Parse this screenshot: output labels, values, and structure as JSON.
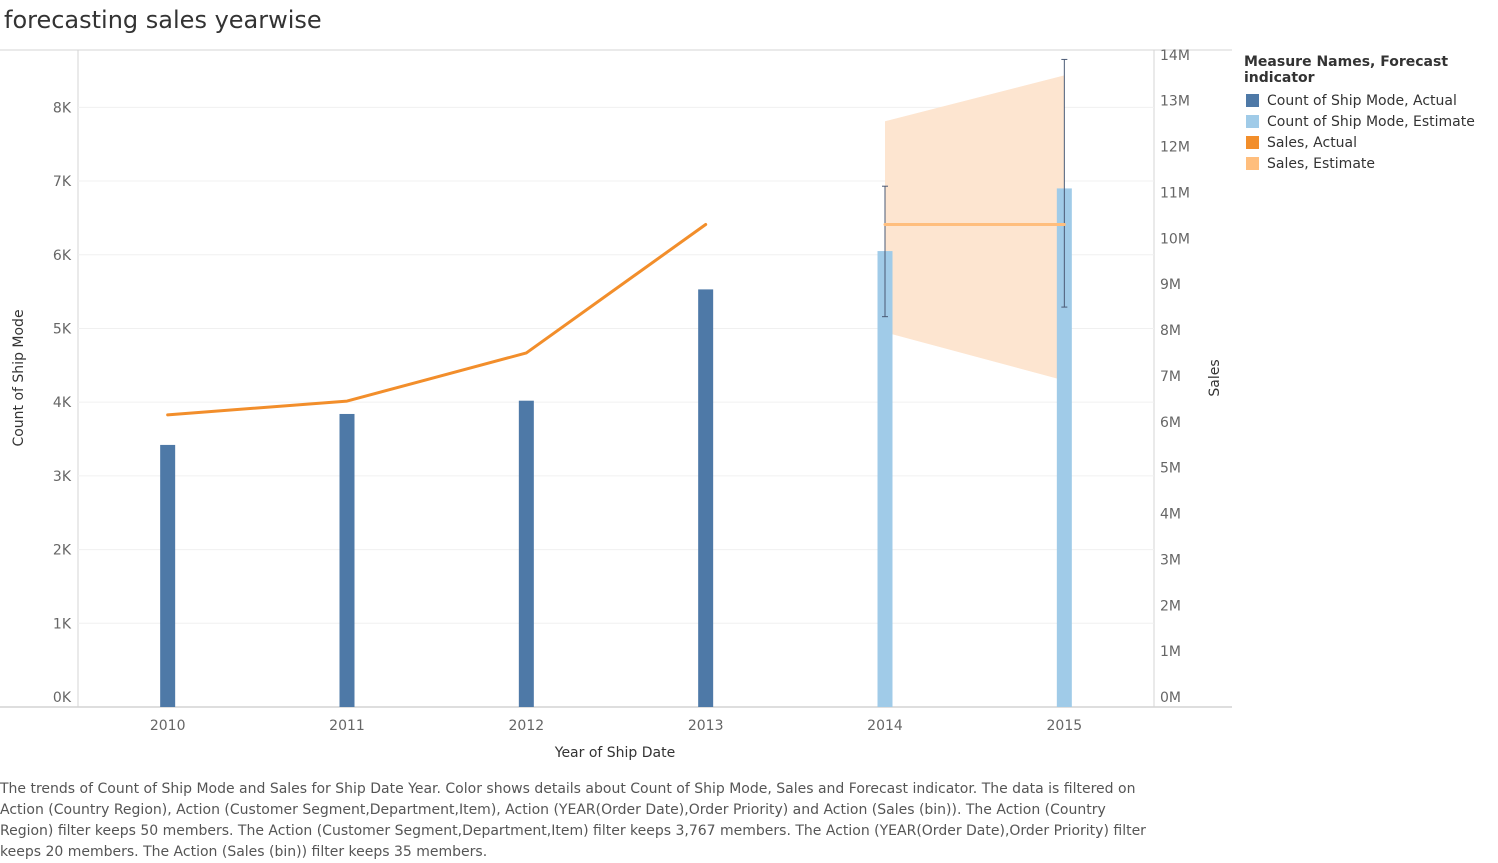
{
  "title": "forecasting sales yearwise",
  "chart_data": {
    "type": "bar",
    "categories": [
      "2010",
      "2011",
      "2012",
      "2013",
      "2014",
      "2015"
    ],
    "series": [
      {
        "name": "Count of Ship Mode, Actual",
        "axis": "left",
        "mark": "bar",
        "values": [
          3420,
          3840,
          4020,
          5530,
          null,
          null
        ]
      },
      {
        "name": "Count of Ship Mode, Estimate",
        "axis": "left",
        "mark": "bar",
        "values": [
          null,
          null,
          null,
          null,
          6050,
          6900
        ],
        "interval_low": [
          null,
          null,
          null,
          null,
          5160,
          5290
        ],
        "interval_high": [
          null,
          null,
          null,
          null,
          6930,
          8650
        ]
      },
      {
        "name": "Sales, Actual",
        "axis": "right",
        "mark": "line",
        "values": [
          6150000,
          6450000,
          7500000,
          10300000,
          null,
          null
        ]
      },
      {
        "name": "Sales, Estimate",
        "axis": "right",
        "mark": "line",
        "values": [
          null,
          null,
          null,
          null,
          10300000,
          10300000
        ],
        "band_low": [
          null,
          null,
          null,
          null,
          7950000,
          6900000
        ],
        "band_high": [
          null,
          null,
          null,
          null,
          12550000,
          13550000
        ]
      }
    ],
    "xlabel": "Year of Ship Date",
    "ylabel": "Count of Ship Mode",
    "y2label": "Sales",
    "ylim": [
      0,
      8900
    ],
    "y2lim": [
      0,
      14300000
    ],
    "yticks": [
      0,
      1000,
      2000,
      3000,
      4000,
      5000,
      6000,
      7000,
      8000
    ],
    "yticklabels": [
      "0K",
      "1K",
      "2K",
      "3K",
      "4K",
      "5K",
      "6K",
      "7K",
      "8K"
    ],
    "y2ticks": [
      0,
      1000000,
      2000000,
      3000000,
      4000000,
      5000000,
      6000000,
      7000000,
      8000000,
      9000000,
      10000000,
      11000000,
      12000000,
      13000000,
      14000000
    ],
    "y2ticklabels": [
      "0M",
      "1M",
      "2M",
      "3M",
      "4M",
      "5M",
      "6M",
      "7M",
      "8M",
      "9M",
      "10M",
      "11M",
      "12M",
      "13M",
      "14M"
    ],
    "grid": true,
    "legend": {
      "title": "Measure Names, Forecast indicator",
      "position": "right",
      "items": [
        {
          "label": "Count of Ship Mode, Actual",
          "color": "#4e79a7"
        },
        {
          "label": "Count of Ship Mode, Estimate",
          "color": "#a0cbe8"
        },
        {
          "label": "Sales, Actual",
          "color": "#f28e2b"
        },
        {
          "label": "Sales, Estimate",
          "color": "#ffbe7d"
        }
      ]
    },
    "colors": {
      "bar_actual": "#4e79a7",
      "bar_estimate": "#a0cbe8",
      "line_actual": "#f28e2b",
      "line_estimate": "#ffbe7d",
      "band": "#fde5d0",
      "error_bar": "#4a5a75"
    }
  },
  "caption": "The trends of Count of Ship Mode and Sales for Ship Date Year.  Color shows details about Count of Ship Mode, Sales and Forecast indicator. The data is filtered on Action (Country Region), Action (Customer Segment,Department,Item), Action (YEAR(Order Date),Order Priority) and Action (Sales (bin)). The Action (Country Region) filter keeps 50 members. The Action (Customer Segment,Department,Item) filter keeps 3,767 members. The Action (YEAR(Order Date),Order Priority) filter keeps 20 members. The Action (Sales (bin)) filter keeps 35 members."
}
